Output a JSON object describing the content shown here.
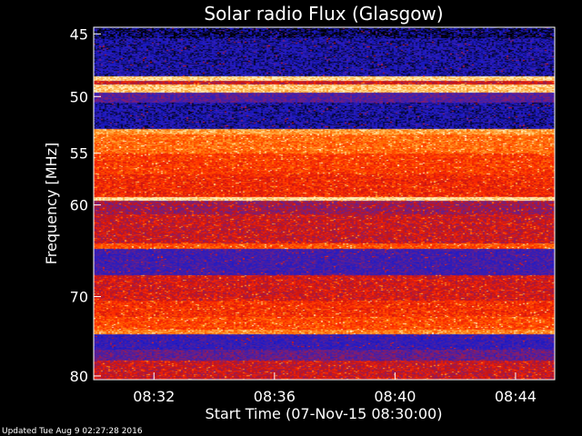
{
  "chart_data": {
    "type": "heatmap",
    "title": "Solar radio Flux (Glasgow)",
    "xlabel": "Start Time (07-Nov-15 08:30:00)",
    "ylabel": "Frequency [MHz]",
    "x_unit": "minutes after 08:30:00",
    "xlim": [
      0,
      15.3
    ],
    "ylim": [
      44.5,
      80.5
    ],
    "y_reversed": true,
    "x_ticks": [
      {
        "value": 2,
        "label": "08:32"
      },
      {
        "value": 6,
        "label": "08:36"
      },
      {
        "value": 10,
        "label": "08:40"
      },
      {
        "value": 14,
        "label": "08:44"
      }
    ],
    "y_ticks": [
      {
        "value": 45,
        "label": "45"
      },
      {
        "value": 50,
        "label": "50"
      },
      {
        "value": 55,
        "label": "55"
      },
      {
        "value": 60,
        "label": "60"
      },
      {
        "value": 70,
        "label": "70"
      },
      {
        "value": 80,
        "label": "80"
      }
    ],
    "frequency_bands": [
      {
        "from": 44.5,
        "to": 45.3,
        "level": 0.05
      },
      {
        "from": 45.3,
        "to": 48.3,
        "level": 0.12
      },
      {
        "from": 48.3,
        "to": 48.7,
        "level": 0.95
      },
      {
        "from": 48.7,
        "to": 49.0,
        "level": 0.5
      },
      {
        "from": 49.0,
        "to": 49.7,
        "level": 0.92
      },
      {
        "from": 49.7,
        "to": 50.5,
        "level": 0.3
      },
      {
        "from": 50.5,
        "to": 52.8,
        "level": 0.12
      },
      {
        "from": 52.8,
        "to": 53.3,
        "level": 0.85
      },
      {
        "from": 53.3,
        "to": 55.0,
        "level": 0.75
      },
      {
        "from": 55.0,
        "to": 57.0,
        "level": 0.65
      },
      {
        "from": 57.0,
        "to": 59.2,
        "level": 0.6
      },
      {
        "from": 59.2,
        "to": 59.6,
        "level": 0.97
      },
      {
        "from": 59.6,
        "to": 61.0,
        "level": 0.42
      },
      {
        "from": 61.0,
        "to": 64.0,
        "level": 0.5
      },
      {
        "from": 64.0,
        "to": 64.6,
        "level": 0.7
      },
      {
        "from": 64.6,
        "to": 67.5,
        "level": 0.25
      },
      {
        "from": 67.5,
        "to": 70.5,
        "level": 0.52
      },
      {
        "from": 70.5,
        "to": 72.5,
        "level": 0.62
      },
      {
        "from": 72.5,
        "to": 74.0,
        "level": 0.68
      },
      {
        "from": 74.0,
        "to": 74.6,
        "level": 0.8
      },
      {
        "from": 74.6,
        "to": 76.5,
        "level": 0.22
      },
      {
        "from": 76.5,
        "to": 78.0,
        "level": 0.33
      },
      {
        "from": 78.0,
        "to": 80.5,
        "level": 0.5
      }
    ],
    "colormap": [
      "#000000",
      "#1a1acc",
      "#3a1fb0",
      "#7a1f7a",
      "#c81414",
      "#ff2a00",
      "#ff6a00",
      "#ffae40",
      "#fff2c0"
    ]
  },
  "footer": {
    "updated": "Updated Tue Aug  9 02:27:28 2016"
  }
}
